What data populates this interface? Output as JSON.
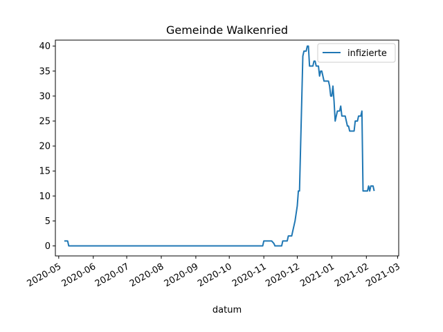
{
  "chart_data": {
    "type": "line",
    "title": "Gemeinde Walkenried",
    "xlabel": "datum",
    "ylabel": "",
    "xlim": [
      "2020-04-28",
      "2021-03-02"
    ],
    "ylim": [
      -2,
      41.2
    ],
    "grid": false,
    "legend_position": "top-right",
    "x_ticks": [
      "2020-05",
      "2020-06",
      "2020-07",
      "2020-08",
      "2020-09",
      "2020-10",
      "2020-11",
      "2020-12",
      "2021-01",
      "2021-02",
      "2021-03"
    ],
    "y_ticks": [
      0,
      5,
      10,
      15,
      20,
      25,
      30,
      35,
      40
    ],
    "series": [
      {
        "name": "infizierte",
        "color": "#1f77b4",
        "points": [
          [
            "2020-05-06",
            1
          ],
          [
            "2020-05-09",
            1
          ],
          [
            "2020-05-10",
            0
          ],
          [
            "2020-10-31",
            0
          ],
          [
            "2020-11-01",
            1
          ],
          [
            "2020-11-08",
            1
          ],
          [
            "2020-11-10",
            0.5
          ],
          [
            "2020-11-11",
            0
          ],
          [
            "2020-11-17",
            0
          ],
          [
            "2020-11-18",
            1
          ],
          [
            "2020-11-22",
            1
          ],
          [
            "2020-11-23",
            2
          ],
          [
            "2020-11-26",
            2
          ],
          [
            "2020-11-27",
            3
          ],
          [
            "2020-11-29",
            5
          ],
          [
            "2020-12-01",
            8
          ],
          [
            "2020-12-02",
            11
          ],
          [
            "2020-12-03",
            11
          ],
          [
            "2020-12-06",
            38
          ],
          [
            "2020-12-07",
            39
          ],
          [
            "2020-12-09",
            39
          ],
          [
            "2020-12-10",
            40
          ],
          [
            "2020-12-11",
            40
          ],
          [
            "2020-12-12",
            36
          ],
          [
            "2020-12-15",
            36
          ],
          [
            "2020-12-16",
            37
          ],
          [
            "2020-12-17",
            37
          ],
          [
            "2020-12-18",
            36
          ],
          [
            "2020-12-20",
            36
          ],
          [
            "2020-12-21",
            34
          ],
          [
            "2020-12-22",
            35
          ],
          [
            "2020-12-23",
            35
          ],
          [
            "2020-12-24",
            34
          ],
          [
            "2020-12-25",
            33
          ],
          [
            "2020-12-29",
            33
          ],
          [
            "2020-12-30",
            32
          ],
          [
            "2020-12-31",
            30
          ],
          [
            "2021-01-01",
            30
          ],
          [
            "2021-01-02",
            32
          ],
          [
            "2021-01-03",
            29
          ],
          [
            "2021-01-04",
            25
          ],
          [
            "2021-01-05",
            26
          ],
          [
            "2021-01-06",
            27
          ],
          [
            "2021-01-08",
            27
          ],
          [
            "2021-01-09",
            28
          ],
          [
            "2021-01-10",
            26
          ],
          [
            "2021-01-13",
            26
          ],
          [
            "2021-01-14",
            25
          ],
          [
            "2021-01-15",
            24
          ],
          [
            "2021-01-16",
            24
          ],
          [
            "2021-01-17",
            23
          ],
          [
            "2021-01-21",
            23
          ],
          [
            "2021-01-22",
            25
          ],
          [
            "2021-01-24",
            25
          ],
          [
            "2021-01-25",
            26
          ],
          [
            "2021-01-27",
            26
          ],
          [
            "2021-01-28",
            27
          ],
          [
            "2021-01-29",
            11
          ],
          [
            "2021-02-02",
            11
          ],
          [
            "2021-02-03",
            12
          ],
          [
            "2021-02-04",
            11
          ],
          [
            "2021-02-05",
            12
          ],
          [
            "2021-02-07",
            12
          ],
          [
            "2021-02-08",
            11
          ]
        ]
      }
    ]
  }
}
